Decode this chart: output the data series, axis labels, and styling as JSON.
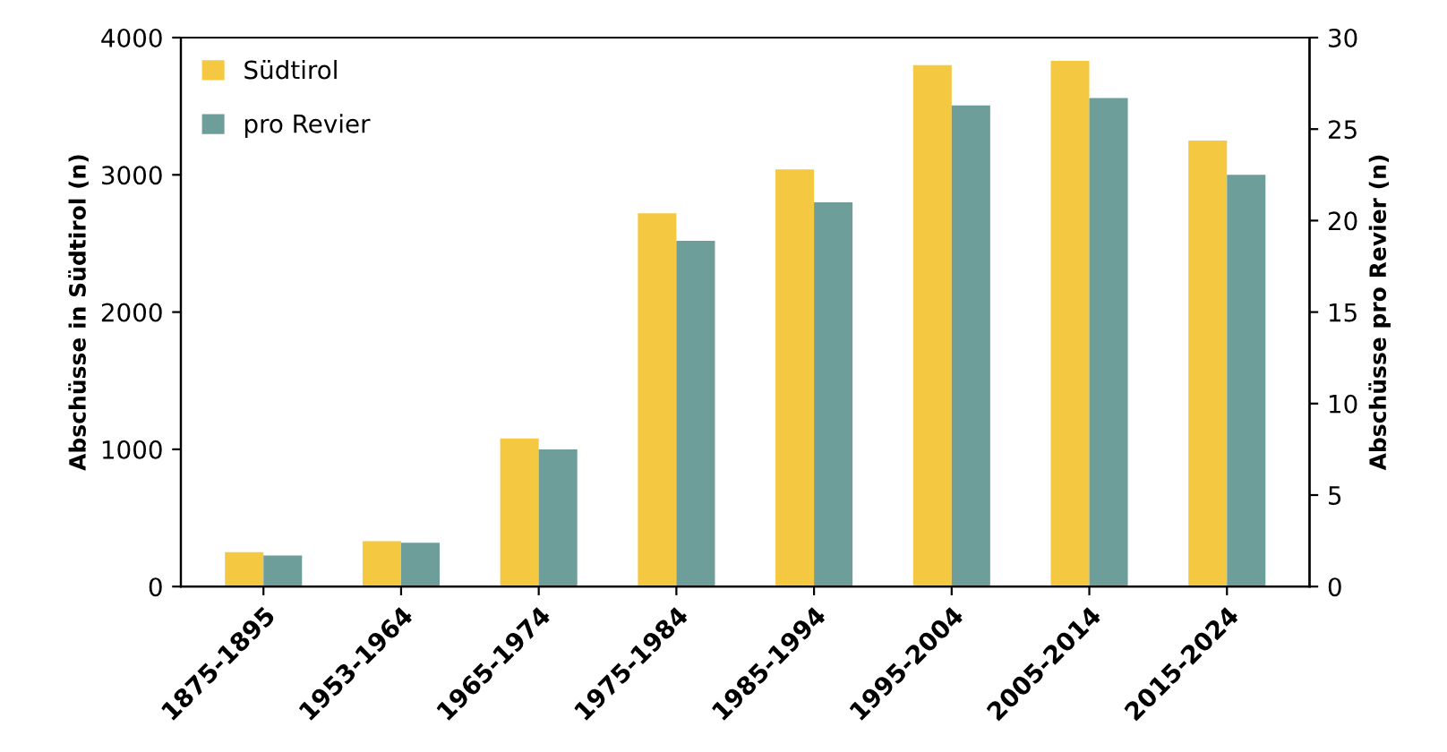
{
  "chart_data": {
    "type": "bar",
    "ylabel": "Abschüsse in Südtirol (n)",
    "y2label": "Abschüsse pro Revier (n)",
    "categories": [
      "1875-1895",
      "1953-1964",
      "1965-1974",
      "1975-1984",
      "1985-1994",
      "1995-2004",
      "2005-2014",
      "2015-2024"
    ],
    "series": [
      {
        "name": "Südtirol",
        "color": "#f5c842",
        "values": [
          250,
          330,
          1080,
          2720,
          3040,
          3800,
          3830,
          3250
        ]
      },
      {
        "name": "pro Revier",
        "color": "#6e9e9a",
        "axis": "y2",
        "values": [
          1.7,
          2.4,
          7.5,
          18.9,
          21.0,
          26.3,
          26.7,
          22.5
        ]
      }
    ],
    "ylim": [
      0,
      4000
    ],
    "yticks": [
      0,
      1000,
      2000,
      3000,
      4000
    ],
    "y2lim": [
      0,
      30
    ],
    "y2ticks": [
      0,
      5,
      10,
      15,
      20,
      25,
      30
    ],
    "legend": "top left",
    "grid": false
  }
}
